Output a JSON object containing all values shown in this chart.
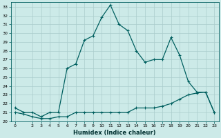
{
  "title": "",
  "xlabel": "Humidex (Indice chaleur)",
  "bg_color": "#cceae8",
  "grid_color": "#aacccc",
  "line_color": "#005f5f",
  "xlim": [
    -0.5,
    23.5
  ],
  "ylim": [
    20,
    33.5
  ],
  "xticks": [
    0,
    2,
    3,
    4,
    5,
    6,
    7,
    8,
    9,
    10,
    11,
    12,
    13,
    14,
    15,
    16,
    17,
    18,
    19,
    20,
    21,
    22,
    23
  ],
  "yticks": [
    20,
    21,
    22,
    23,
    24,
    25,
    26,
    27,
    28,
    29,
    30,
    31,
    32,
    33
  ],
  "series1_x": [
    0,
    1,
    2,
    3,
    4,
    5,
    6,
    7,
    8,
    9,
    10,
    11,
    12,
    13,
    14,
    15,
    16,
    17,
    18,
    19,
    20,
    21,
    22,
    23
  ],
  "series1_y": [
    21.5,
    21.0,
    21.0,
    20.5,
    21.0,
    21.0,
    26.0,
    26.5,
    29.2,
    29.7,
    31.8,
    33.2,
    31.0,
    30.3,
    28.0,
    26.7,
    27.0,
    27.0,
    29.5,
    27.5,
    24.5,
    23.3,
    23.3,
    21.0
  ],
  "series2_x": [
    0,
    1,
    2,
    3,
    4,
    5,
    6,
    7,
    8,
    9,
    10,
    11,
    12,
    13,
    14,
    15,
    16,
    17,
    18,
    19,
    20,
    21,
    22,
    23
  ],
  "series2_y": [
    21.0,
    20.8,
    20.5,
    20.3,
    20.3,
    20.5,
    20.5,
    21.0,
    21.0,
    21.0,
    21.0,
    21.0,
    21.0,
    21.0,
    21.5,
    21.5,
    21.5,
    21.7,
    22.0,
    22.5,
    23.0,
    23.2,
    23.3,
    21.0
  ],
  "marker_size": 3,
  "linewidth": 0.9
}
